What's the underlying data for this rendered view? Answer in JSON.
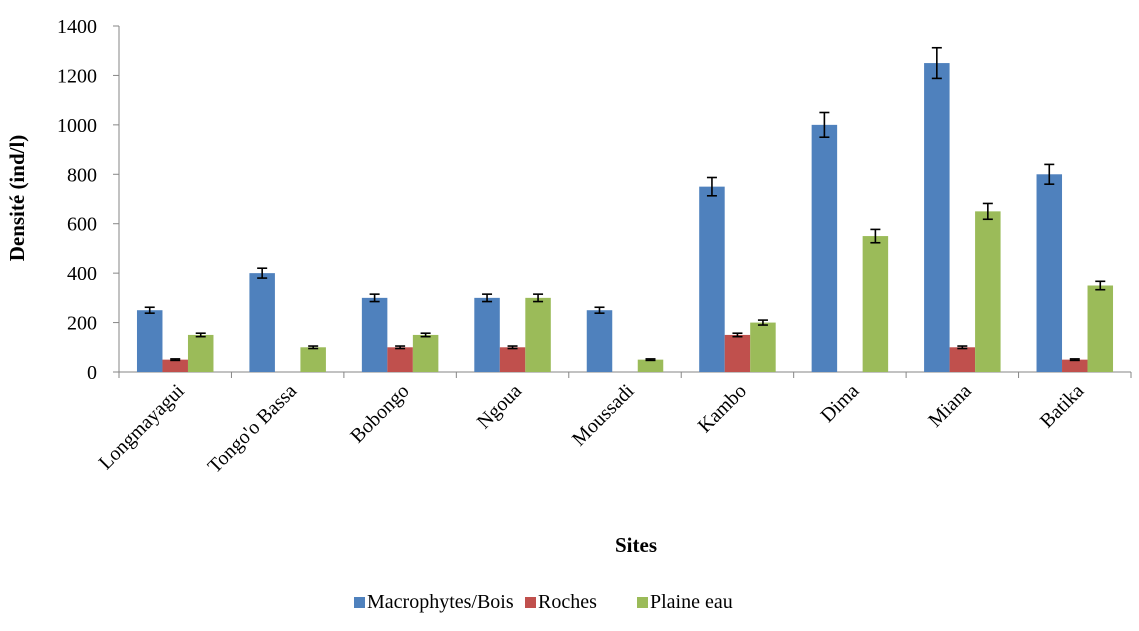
{
  "chart_data": {
    "type": "bar",
    "xlabel": "Sites",
    "ylabel": "Densité (ind/l)",
    "ylim": [
      0,
      1400
    ],
    "yticks": [
      0,
      200,
      400,
      600,
      800,
      1000,
      1200,
      1400
    ],
    "grid": false,
    "legend_position": "bottom",
    "categories": [
      "Longmayagui",
      "Tongo'o Bassa",
      "Bobongo",
      "Ngoua",
      "Moussadi",
      "Kambo",
      "Dima",
      "Miana",
      "Batika"
    ],
    "series": [
      {
        "name": "Macrophytes/Bois",
        "color": "#4F81BD",
        "values": [
          250,
          400,
          300,
          300,
          250,
          750,
          1000,
          1250,
          800
        ],
        "errors": [
          12,
          20,
          15,
          15,
          12,
          37,
          50,
          62,
          40
        ]
      },
      {
        "name": "Roches",
        "color": "#C0504D",
        "values": [
          50,
          0,
          100,
          100,
          0,
          150,
          0,
          100,
          50
        ],
        "errors": [
          3,
          0,
          5,
          5,
          0,
          7,
          0,
          5,
          3
        ]
      },
      {
        "name": "Plaine eau",
        "color": "#9BBB59",
        "values": [
          150,
          100,
          150,
          300,
          50,
          200,
          550,
          650,
          350
        ],
        "errors": [
          7,
          5,
          7,
          15,
          3,
          10,
          27,
          32,
          17
        ]
      }
    ]
  }
}
